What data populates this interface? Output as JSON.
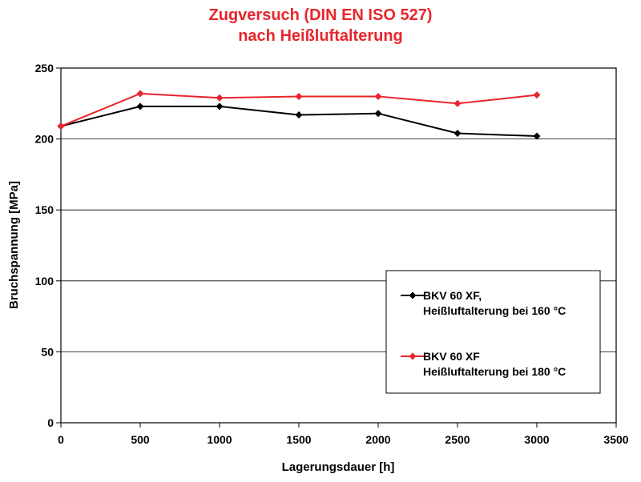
{
  "chart_data": {
    "type": "line",
    "title": [
      "Zugversuch (DIN EN ISO 527)",
      "nach Heißluftalterung"
    ],
    "xlabel": "Lagerungsdauer [h]",
    "ylabel": "Bruchspannung  [MPa]",
    "xlim": [
      0,
      3500
    ],
    "ylim": [
      0,
      250
    ],
    "xticks": [
      0,
      500,
      1000,
      1500,
      2000,
      2500,
      3000,
      3500
    ],
    "yticks": [
      0,
      50,
      100,
      150,
      200,
      250
    ],
    "grid": "horizontal",
    "legend_position": "bottom-right",
    "series": [
      {
        "name": [
          "BKV 60 XF,",
          "Heißluftalterung bei 160 °C"
        ],
        "color": "#000000",
        "marker": "diamond",
        "x": [
          0,
          500,
          1000,
          1500,
          2000,
          2500,
          3000
        ],
        "y": [
          209,
          223,
          223,
          217,
          218,
          204,
          202
        ]
      },
      {
        "name": [
          "BKV 60 XF",
          "Heißluftalterung bei 180 °C"
        ],
        "color": "#e8252b",
        "marker": "diamond",
        "x": [
          0,
          500,
          1000,
          1500,
          2000,
          2500,
          3000
        ],
        "y": [
          209,
          232,
          229,
          230,
          230,
          225,
          231
        ]
      }
    ]
  }
}
